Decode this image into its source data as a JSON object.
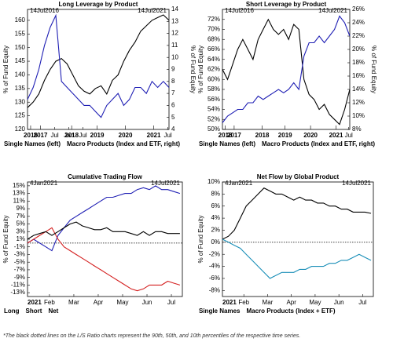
{
  "chart_data": [
    {
      "type": "line",
      "title": "Long Leverage by Product",
      "start_label": "14Jul2016",
      "end_label": "14Jul2021",
      "y_label": "% of Fund Equity",
      "y2_label": "% of Fund Equity",
      "x": [
        2016.54,
        2016.74,
        2016.94,
        2017.14,
        2017.34,
        2017.54,
        2017.74,
        2017.94,
        2018.14,
        2018.34,
        2018.54,
        2018.74,
        2018.94,
        2019.14,
        2019.34,
        2019.54,
        2019.74,
        2019.94,
        2020.14,
        2020.34,
        2020.54,
        2020.74,
        2020.94,
        2021.14,
        2021.34,
        2021.54
      ],
      "xlim": [
        2016.54,
        2021.54
      ],
      "xticks": [
        {
          "value": 2017.5,
          "label": "Jul"
        },
        {
          "value": 2018.0,
          "label": "Jan"
        },
        {
          "value": 2018.5,
          "label": "Jul"
        },
        {
          "value": 2021.5,
          "label": "Jul"
        }
      ],
      "year_ticks": [
        {
          "value": 2016.65,
          "label": "2016"
        },
        {
          "value": 2017.0,
          "label": "2017"
        },
        {
          "value": 2018.1,
          "label": "2018"
        },
        {
          "value": 2019.0,
          "label": "2019"
        },
        {
          "value": 2020.0,
          "label": "2020"
        },
        {
          "value": 2021.0,
          "label": "2021"
        }
      ],
      "ylim": [
        120,
        164
      ],
      "yticks": [
        120,
        125,
        130,
        135,
        140,
        145,
        150,
        155,
        160
      ],
      "y2lim": [
        4,
        14
      ],
      "y2ticks": [
        4,
        5,
        6,
        7,
        8,
        9,
        10,
        11,
        12,
        13,
        14
      ],
      "series": [
        {
          "name": "Single Names (left)",
          "color": "#000000",
          "values": [
            128,
            130,
            133,
            138,
            142,
            145,
            146,
            144,
            140,
            136,
            134,
            133,
            135,
            136,
            133,
            138,
            140,
            145,
            149,
            152,
            156,
            158,
            160,
            161,
            162,
            160
          ]
        },
        {
          "name": "Macro Products (Index and ETF, right)",
          "color": "#1f1fb4",
          "axis": "y2",
          "values": [
            6.5,
            7.5,
            9,
            11,
            12.5,
            13.5,
            8,
            7.5,
            7,
            6.5,
            6,
            6,
            5.5,
            5,
            6,
            6.5,
            7,
            6,
            6.5,
            7.5,
            7.5,
            7,
            8,
            7.5,
            8,
            7.5
          ]
        }
      ]
    },
    {
      "type": "line",
      "title": "Short Leverage by Product",
      "start_label": "14Jul2016",
      "end_label": "14Jul2021",
      "y_label": "% of Fund Equity",
      "y2_label": "% of Fund Equity",
      "x": [
        2016.54,
        2016.74,
        2016.94,
        2017.14,
        2017.34,
        2017.54,
        2017.74,
        2017.94,
        2018.14,
        2018.34,
        2018.54,
        2018.74,
        2018.94,
        2019.14,
        2019.34,
        2019.54,
        2019.74,
        2019.94,
        2020.14,
        2020.34,
        2020.54,
        2020.74,
        2020.94,
        2021.14,
        2021.34,
        2021.54
      ],
      "xlim": [
        2016.54,
        2021.54
      ],
      "xticks": [
        {
          "value": 2021.5,
          "label": "Jul"
        }
      ],
      "year_ticks": [
        {
          "value": 2016.65,
          "label": "2016"
        },
        {
          "value": 2017.0,
          "label": "2017"
        },
        {
          "value": 2018.1,
          "label": "2018"
        },
        {
          "value": 2019.0,
          "label": "2019"
        },
        {
          "value": 2020.0,
          "label": "2020"
        },
        {
          "value": 2021.0,
          "label": "2021"
        }
      ],
      "ylim": [
        50,
        74
      ],
      "yticks": [
        {
          "value": 50,
          "label": "50%"
        },
        {
          "value": 52,
          "label": "52%"
        },
        {
          "value": 54,
          "label": "54%"
        },
        {
          "value": 56,
          "label": "56%"
        },
        {
          "value": 58,
          "label": "58%"
        },
        {
          "value": 60,
          "label": "60%"
        },
        {
          "value": 62,
          "label": "62%"
        },
        {
          "value": 64,
          "label": "64%"
        },
        {
          "value": 66,
          "label": "66%"
        },
        {
          "value": 68,
          "label": "68%"
        },
        {
          "value": 70,
          "label": "70%"
        },
        {
          "value": 72,
          "label": "72%"
        }
      ],
      "y2lim": [
        8,
        26
      ],
      "y2ticks": [
        {
          "value": 8,
          "label": "8%"
        },
        {
          "value": 10,
          "label": "10%"
        },
        {
          "value": 12,
          "label": "12%"
        },
        {
          "value": 14,
          "label": "14%"
        },
        {
          "value": 16,
          "label": "16%"
        },
        {
          "value": 18,
          "label": "18%"
        },
        {
          "value": 20,
          "label": "20%"
        },
        {
          "value": 22,
          "label": "22%"
        },
        {
          "value": 24,
          "label": "24%"
        },
        {
          "value": 26,
          "label": "26%"
        }
      ],
      "series": [
        {
          "name": "Single Names (left)",
          "color": "#000000",
          "values": [
            62,
            60,
            63,
            66,
            68,
            66,
            64,
            68,
            70,
            72,
            70,
            69,
            70,
            68,
            71,
            70,
            60,
            57,
            56,
            54,
            55,
            53,
            52,
            51,
            54,
            58
          ]
        },
        {
          "name": "Macro Products (Index and ETF, right)",
          "color": "#1f1fb4",
          "axis": "y2",
          "values": [
            9,
            10,
            10.5,
            11,
            11,
            12,
            12,
            13,
            12.5,
            13,
            13.5,
            14,
            13.5,
            14,
            15,
            14,
            19,
            21,
            21,
            22,
            21,
            22,
            23,
            25,
            24,
            22
          ]
        }
      ]
    },
    {
      "type": "line",
      "title": "Cumulative Trading Flow",
      "start_label": "4Jan2021",
      "end_label": "14Jul2021",
      "year_label": "2021",
      "y_label": "% of Fund Equity",
      "reference_line": 0,
      "x": [
        1.1,
        1.35,
        1.6,
        1.85,
        2.1,
        2.35,
        2.6,
        2.85,
        3.1,
        3.35,
        3.6,
        3.85,
        4.1,
        4.35,
        4.6,
        4.85,
        5.1,
        5.35,
        5.6,
        5.85,
        6.1,
        6.35,
        6.6,
        6.85,
        7.1,
        7.35
      ],
      "xlim": [
        1.1,
        7.45
      ],
      "xticks": [
        {
          "value": 2,
          "label": "Feb"
        },
        {
          "value": 3,
          "label": "Mar"
        },
        {
          "value": 4,
          "label": "Apr"
        },
        {
          "value": 5,
          "label": "May"
        },
        {
          "value": 6,
          "label": "Jun"
        },
        {
          "value": 7,
          "label": "Jul"
        }
      ],
      "ylim": [
        -14,
        16
      ],
      "yticks": [
        {
          "value": -13,
          "label": "-13%"
        },
        {
          "value": -11,
          "label": "-11%"
        },
        {
          "value": -9,
          "label": "-9%"
        },
        {
          "value": -7,
          "label": "-7%"
        },
        {
          "value": -5,
          "label": "-5%"
        },
        {
          "value": -3,
          "label": "-3%"
        },
        {
          "value": -1,
          "label": "-1%"
        },
        {
          "value": 1,
          "label": "1%"
        },
        {
          "value": 3,
          "label": "3%"
        },
        {
          "value": 5,
          "label": "5%"
        },
        {
          "value": 7,
          "label": "7%"
        },
        {
          "value": 9,
          "label": "9%"
        },
        {
          "value": 11,
          "label": "11%"
        },
        {
          "value": 13,
          "label": "13%"
        },
        {
          "value": 15,
          "label": "15%"
        }
      ],
      "series": [
        {
          "name": "Long",
          "color": "#1f1fb4",
          "values": [
            0,
            1,
            0,
            -1,
            -2,
            2,
            4,
            6,
            7,
            8,
            9,
            10,
            11,
            12,
            12,
            12.5,
            13,
            13,
            14,
            14.5,
            14,
            15,
            14,
            14,
            13.5,
            13
          ]
        },
        {
          "name": "Short",
          "color": "#d42020",
          "values": [
            0,
            1,
            2,
            3,
            4,
            1,
            -1,
            -2,
            -3,
            -4,
            -5,
            -6,
            -7,
            -8,
            -9,
            -10,
            -11,
            -12,
            -12.5,
            -12,
            -11,
            -11,
            -11,
            -10,
            -10.5,
            -11
          ]
        },
        {
          "name": "Net",
          "color": "#000000",
          "values": [
            1,
            2,
            2.5,
            3,
            2,
            3,
            4,
            5,
            5.5,
            4.5,
            4,
            3.5,
            3.5,
            4,
            3,
            3,
            3,
            2.5,
            2,
            3,
            2,
            3,
            3,
            2.5,
            2.5,
            2.5
          ]
        }
      ]
    },
    {
      "type": "line",
      "title": "Net Flow by Global Product",
      "start_label": "4Jan2021",
      "end_label": "14Jul2021",
      "year_label": "2021",
      "y_label": "% of Fund Equity",
      "reference_line": 0,
      "x": [
        1.1,
        1.35,
        1.6,
        1.85,
        2.1,
        2.35,
        2.6,
        2.85,
        3.1,
        3.35,
        3.6,
        3.85,
        4.1,
        4.35,
        4.6,
        4.85,
        5.1,
        5.35,
        5.6,
        5.85,
        6.1,
        6.35,
        6.6,
        6.85,
        7.1,
        7.35
      ],
      "xlim": [
        1.1,
        7.45
      ],
      "xticks": [
        {
          "value": 2,
          "label": "Feb"
        },
        {
          "value": 3,
          "label": "Mar"
        },
        {
          "value": 4,
          "label": "Apr"
        },
        {
          "value": 5,
          "label": "May"
        },
        {
          "value": 6,
          "label": "Jun"
        },
        {
          "value": 7,
          "label": "Jul"
        }
      ],
      "ylim": [
        -9,
        10
      ],
      "yticks": [
        {
          "value": -8,
          "label": "-8%"
        },
        {
          "value": -6,
          "label": "-6%"
        },
        {
          "value": -4,
          "label": "-4%"
        },
        {
          "value": -2,
          "label": "-2%"
        },
        {
          "value": 0,
          "label": "0%"
        },
        {
          "value": 2,
          "label": "2%"
        },
        {
          "value": 4,
          "label": "4%"
        },
        {
          "value": 6,
          "label": "6%"
        },
        {
          "value": 8,
          "label": "8%"
        },
        {
          "value": 10,
          "label": "10%"
        }
      ],
      "series": [
        {
          "name": "Single Names",
          "color": "#000000",
          "values": [
            0.5,
            1,
            2,
            4,
            6,
            7,
            8,
            9,
            8.5,
            8,
            8,
            7.5,
            7,
            7.5,
            7,
            7,
            6.5,
            6.5,
            6,
            6,
            5.5,
            5.5,
            5,
            5,
            5,
            4.8
          ]
        },
        {
          "name": "Macro Products (Index + ETF)",
          "color": "#1a8fb8",
          "values": [
            0.5,
            0,
            -0.5,
            -1,
            -2,
            -3,
            -4,
            -5,
            -6,
            -5.5,
            -5,
            -5,
            -5,
            -4.5,
            -4.5,
            -4,
            -4,
            -4,
            -3.5,
            -3.5,
            -3,
            -3,
            -2.5,
            -2,
            -2.5,
            -3
          ]
        }
      ]
    }
  ],
  "footnote": "*The black dotted lines on the L/S Ratio charts represent the 90th, 50th, and 10th percentiles of the respective time series."
}
